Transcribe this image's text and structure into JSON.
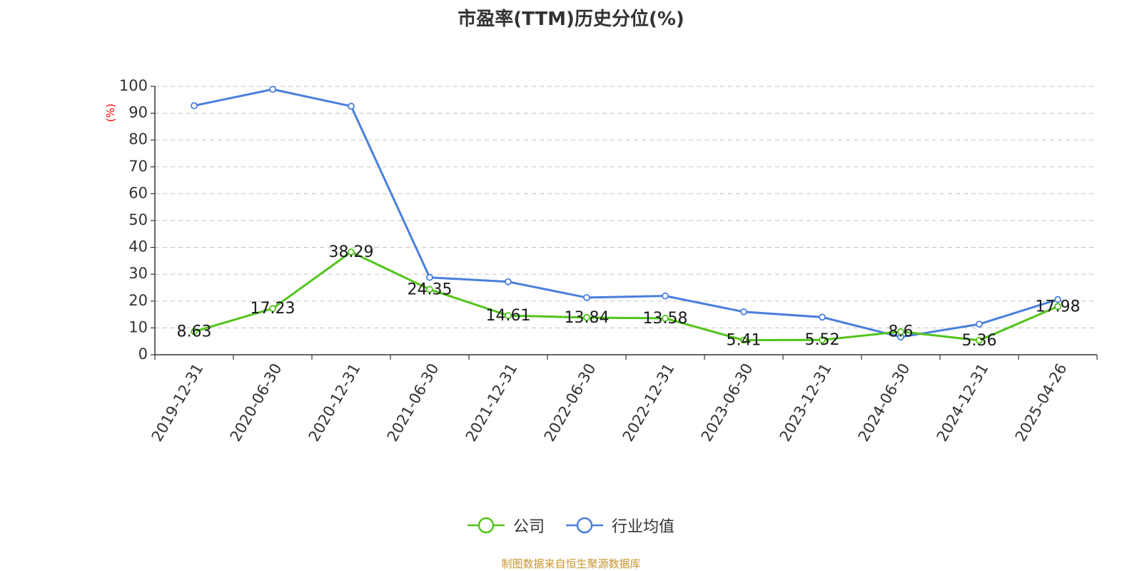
{
  "chart_data": {
    "type": "line",
    "title": "市盈率(TTM)历史分位(%)",
    "ylabel": "(%)",
    "xlabel": "",
    "ylim": [
      0,
      100
    ],
    "yticks": [
      0,
      10,
      20,
      30,
      40,
      50,
      60,
      70,
      80,
      90,
      100
    ],
    "grid": true,
    "legend_position": "bottom-center",
    "categories": [
      "2019-12-31",
      "2020-06-30",
      "2020-12-31",
      "2021-06-30",
      "2021-12-31",
      "2022-06-30",
      "2022-12-31",
      "2023-06-30",
      "2023-12-31",
      "2024-06-30",
      "2024-12-31",
      "2025-04-26"
    ],
    "series": [
      {
        "name": "公司",
        "color": "#52c41a",
        "values": [
          8.63,
          17.23,
          38.29,
          24.35,
          14.61,
          13.84,
          13.58,
          5.41,
          5.52,
          8.6,
          5.36,
          17.98
        ],
        "labels": [
          "8.63",
          "17.23",
          "38.29",
          "24.35",
          "14.61",
          "13.84",
          "13.58",
          "5.41",
          "5.52",
          "8.6",
          "5.36",
          "17.98"
        ]
      },
      {
        "name": "行业均值",
        "color": "#4a7fdd",
        "values": [
          92.8,
          98.9,
          92.6,
          28.8,
          27.2,
          21.3,
          21.9,
          16.0,
          14.0,
          6.6,
          11.4,
          20.6
        ]
      }
    ]
  },
  "source_note": "制图数据来自恒生聚源数据库"
}
